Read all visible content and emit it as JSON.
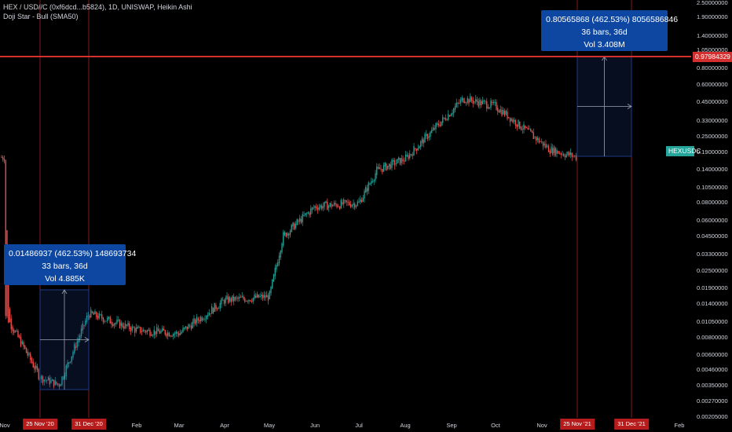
{
  "header": {
    "title": "HEX / USD//C (0xf6dcd...b5824), 1D, UNISWAP, Heikin Ashi",
    "indicator": "Doji Star - Bull (SMA50)"
  },
  "colors": {
    "up": "#26a69a",
    "down": "#ef5350",
    "background": "#000000",
    "measure_fill": "#0d47a1",
    "hline": "#d32f2f",
    "symbol_tag": "#26a69a"
  },
  "price_axis": {
    "scale": "log",
    "ticks": [
      "2.50000000",
      "1.90000000",
      "1.40000000",
      "1.05000000",
      "0.80000000",
      "0.60000000",
      "0.45000000",
      "0.33000000",
      "0.25000000",
      "0.19000000",
      "0.14000000",
      "0.10500000",
      "0.08000000",
      "0.06000000",
      "0.04500000",
      "0.03300000",
      "0.02500000",
      "0.01900000",
      "0.01400000",
      "0.01050000",
      "0.00800000",
      "0.00600000",
      "0.00460000",
      "0.00350000",
      "0.00270000",
      "0.00205000"
    ]
  },
  "time_axis": {
    "labels": [
      "Nov",
      "Feb",
      "Mar",
      "Apr",
      "May",
      "Jun",
      "Jul",
      "Aug",
      "Sep",
      "Oct",
      "Nov",
      "Feb"
    ],
    "flags": [
      "25 Nov '20",
      "31 Dec '20",
      "25 Nov '21",
      "31 Dec '21"
    ]
  },
  "tags": {
    "hline_price": "0.97984329",
    "symbol": "HEXUSDC"
  },
  "measure_left": {
    "line1": "0.01486937 (462.53%) 148693734",
    "line2": "33 bars, 36d",
    "line3": "Vol 4.885K"
  },
  "measure_right": {
    "line1": "0.80565868 (462.53%) 8056586846",
    "line2": "36 bars, 36d",
    "line3": "Vol 3.408M"
  },
  "chart_data": {
    "type": "candlestick",
    "scale": "log",
    "title": "HEX / USD//C (0xf6dcd...b5824), 1D, UNISWAP, Heikin Ashi",
    "ylim": [
      0.00205,
      2.5
    ],
    "hline": 0.97984329,
    "approx_close_path": [
      [
        "Nov 2020",
        0.012
      ],
      [
        "25 Nov '20",
        0.004
      ],
      [
        "Dec 2020",
        0.0035
      ],
      [
        "31 Dec '20",
        0.012
      ],
      [
        "Feb 2021",
        0.009
      ],
      [
        "Mar 2021",
        0.0085
      ],
      [
        "Apr 2021",
        0.015
      ],
      [
        "May 2021",
        0.016
      ],
      [
        "May 2021 mid",
        0.045
      ],
      [
        "Jun 2021",
        0.075
      ],
      [
        "Jul 2021",
        0.08
      ],
      [
        "Jul 2021 mid",
        0.14
      ],
      [
        "Aug 2021",
        0.17
      ],
      [
        "Sep 2021",
        0.48
      ],
      [
        "Oct 2021",
        0.42
      ],
      [
        "Nov 2021",
        0.2
      ],
      [
        "25 Nov '21",
        0.175
      ]
    ]
  }
}
